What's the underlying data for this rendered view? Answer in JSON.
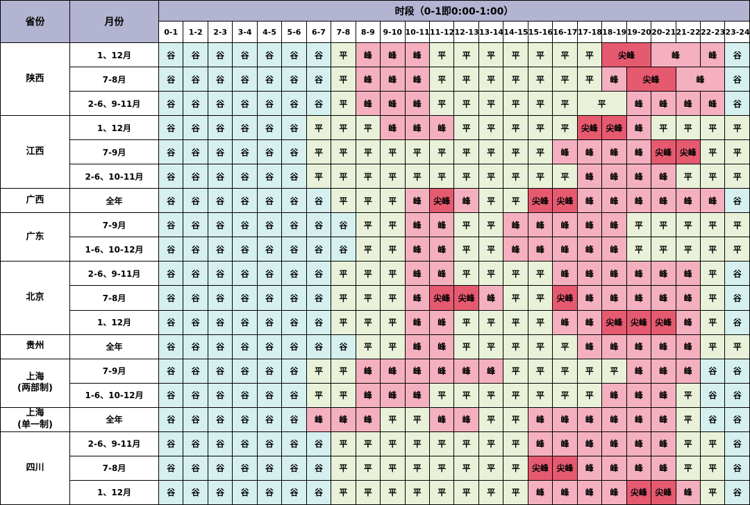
{
  "chart_data": {
    "type": "table",
    "title": "",
    "header": {
      "province": "省份",
      "month": "月份",
      "period_title": "时段（0-1即0:00-1:00）",
      "hours": [
        "0-1",
        "1-2",
        "2-3",
        "3-4",
        "4-5",
        "5-6",
        "6-7",
        "7-8",
        "8-9",
        "9-10",
        "10-11",
        "11-12",
        "12-13",
        "13-14",
        "14-15",
        "15-16",
        "16-17",
        "17-18",
        "18-19",
        "19-20",
        "20-21",
        "21-22",
        "22-23",
        "23-24"
      ]
    },
    "header_color": "#b3b3d2",
    "period_types": {
      "谷": {
        "name": "valley",
        "color": "#d5f0ee"
      },
      "平": {
        "name": "flat",
        "color": "#e9f2d9"
      },
      "峰": {
        "name": "peak",
        "color": "#f5b0c0"
      },
      "尖峰": {
        "name": "sharp-peak",
        "color": "#e65a70"
      }
    },
    "provinces": [
      {
        "name": "陕西",
        "rows": [
          {
            "month": "1、12月",
            "segments": [
              [
                "谷",
                7
              ],
              [
                "平",
                1
              ],
              [
                "峰",
                3
              ],
              [
                "平",
                7
              ],
              [
                "尖峰",
                1,
                2
              ],
              [
                "峰",
                1,
                2
              ],
              [
                "峰",
                1
              ],
              [
                "谷",
                1
              ]
            ]
          },
          {
            "month": "7-8月",
            "segments": [
              [
                "谷",
                7
              ],
              [
                "平",
                1
              ],
              [
                "峰",
                3
              ],
              [
                "平",
                7
              ],
              [
                "峰",
                1
              ],
              [
                "尖峰",
                1,
                2
              ],
              [
                "峰",
                1,
                2
              ],
              [
                "谷",
                1
              ]
            ]
          },
          {
            "month": "2-6、9-11月",
            "segments": [
              [
                "谷",
                7
              ],
              [
                "平",
                1
              ],
              [
                "峰",
                3
              ],
              [
                "平",
                6
              ],
              [
                "平",
                1,
                2
              ],
              [
                "峰",
                4
              ],
              [
                "谷",
                1
              ]
            ]
          }
        ]
      },
      {
        "name": "江西",
        "rows": [
          {
            "month": "1、12月",
            "segments": [
              [
                "谷",
                6
              ],
              [
                "平",
                3
              ],
              [
                "峰",
                3
              ],
              [
                "平",
                5
              ],
              [
                "尖峰",
                2
              ],
              [
                "峰",
                1
              ],
              [
                "平",
                4
              ]
            ]
          },
          {
            "month": "7-9月",
            "segments": [
              [
                "谷",
                6
              ],
              [
                "平",
                10
              ],
              [
                "峰",
                4
              ],
              [
                "尖峰",
                2
              ],
              [
                "平",
                2
              ]
            ]
          },
          {
            "month": "2-6、10-11月",
            "segments": [
              [
                "谷",
                6
              ],
              [
                "平",
                11
              ],
              [
                "峰",
                4
              ],
              [
                "平",
                3
              ]
            ]
          }
        ]
      },
      {
        "name": "广西",
        "rows": [
          {
            "month": "全年",
            "segments": [
              [
                "谷",
                7
              ],
              [
                "平",
                3
              ],
              [
                "峰",
                1
              ],
              [
                "尖峰",
                1
              ],
              [
                "峰",
                1
              ],
              [
                "平",
                2
              ],
              [
                "尖峰",
                2
              ],
              [
                "峰",
                6
              ],
              [
                "谷",
                1
              ]
            ]
          }
        ]
      },
      {
        "name": "广东",
        "rows": [
          {
            "month": "7-9月",
            "segments": [
              [
                "谷",
                8
              ],
              [
                "平",
                2
              ],
              [
                "峰",
                2
              ],
              [
                "平",
                2
              ],
              [
                "峰",
                5
              ],
              [
                "平",
                5
              ]
            ]
          },
          {
            "month": "1-6、10-12月",
            "segments": [
              [
                "谷",
                8
              ],
              [
                "平",
                2
              ],
              [
                "峰",
                2
              ],
              [
                "平",
                2
              ],
              [
                "峰",
                5
              ],
              [
                "平",
                5
              ]
            ]
          }
        ]
      },
      {
        "name": "北京",
        "rows": [
          {
            "month": "2-6、9-11月",
            "segments": [
              [
                "谷",
                7
              ],
              [
                "平",
                3
              ],
              [
                "峰",
                2
              ],
              [
                "平",
                4
              ],
              [
                "峰",
                6
              ],
              [
                "平",
                1
              ],
              [
                "谷",
                1
              ]
            ]
          },
          {
            "month": "7-8月",
            "segments": [
              [
                "谷",
                7
              ],
              [
                "平",
                3
              ],
              [
                "峰",
                1
              ],
              [
                "尖峰",
                2
              ],
              [
                "峰",
                1
              ],
              [
                "平",
                2
              ],
              [
                "尖峰",
                1
              ],
              [
                "峰",
                5
              ],
              [
                "平",
                1
              ],
              [
                "谷",
                1
              ]
            ]
          },
          {
            "month": "1、12月",
            "segments": [
              [
                "谷",
                7
              ],
              [
                "平",
                3
              ],
              [
                "峰",
                2
              ],
              [
                "平",
                4
              ],
              [
                "峰",
                2
              ],
              [
                "尖峰",
                3
              ],
              [
                "峰",
                1
              ],
              [
                "平",
                1
              ],
              [
                "谷",
                1
              ]
            ]
          }
        ]
      },
      {
        "name": "贵州",
        "rows": [
          {
            "month": "全年",
            "segments": [
              [
                "谷",
                8
              ],
              [
                "平",
                2
              ],
              [
                "峰",
                2
              ],
              [
                "平",
                5
              ],
              [
                "峰",
                5
              ],
              [
                "平",
                2
              ]
            ]
          }
        ]
      },
      {
        "name": "上海\n(两部制)",
        "rows": [
          {
            "month": "7-9月",
            "segments": [
              [
                "谷",
                6
              ],
              [
                "平",
                2
              ],
              [
                "峰",
                6
              ],
              [
                "平",
                5
              ],
              [
                "峰",
                3
              ],
              [
                "谷",
                2
              ]
            ]
          },
          {
            "month": "1-6、10-12月",
            "segments": [
              [
                "谷",
                6
              ],
              [
                "平",
                2
              ],
              [
                "峰",
                3
              ],
              [
                "平",
                7
              ],
              [
                "峰",
                3
              ],
              [
                "平",
                1
              ],
              [
                "谷",
                2
              ]
            ]
          }
        ]
      },
      {
        "name": "上海\n(单一制)",
        "rows": [
          {
            "month": "全年",
            "segments": [
              [
                "谷",
                6
              ],
              [
                "峰",
                3
              ],
              [
                "平",
                2
              ],
              [
                "峰",
                2
              ],
              [
                "平",
                2
              ],
              [
                "峰",
                6
              ],
              [
                "平",
                1
              ],
              [
                "谷",
                2
              ]
            ]
          }
        ]
      },
      {
        "name": "四川",
        "rows": [
          {
            "month": "2-6、9-11月",
            "segments": [
              [
                "谷",
                7
              ],
              [
                "平",
                8
              ],
              [
                "峰",
                6
              ],
              [
                "平",
                2
              ],
              [
                "谷",
                1
              ]
            ]
          },
          {
            "month": "7-8月",
            "segments": [
              [
                "谷",
                7
              ],
              [
                "平",
                8
              ],
              [
                "尖峰",
                2
              ],
              [
                "峰",
                4
              ],
              [
                "平",
                2
              ],
              [
                "谷",
                1
              ]
            ]
          },
          {
            "month": "1、12月",
            "segments": [
              [
                "谷",
                7
              ],
              [
                "平",
                8
              ],
              [
                "峰",
                4
              ],
              [
                "尖峰",
                2
              ],
              [
                "峰",
                1
              ],
              [
                "平",
                1
              ],
              [
                "谷",
                1
              ]
            ]
          }
        ]
      }
    ]
  }
}
